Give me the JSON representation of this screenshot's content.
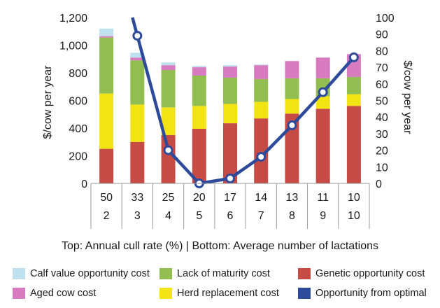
{
  "chart_data": {
    "type": "bar",
    "stacked": true,
    "xlabel": "Top: Annual cull rate (%) | Bottom: Average number of lactations",
    "ylabel_left": "$/cow per year",
    "ylabel_right": "$/cow per year",
    "ylim_left": [
      0,
      1200
    ],
    "yticks_left": [
      "0",
      "200",
      "400",
      "600",
      "800",
      "1,000",
      "1,200"
    ],
    "ylim_right": [
      0,
      100
    ],
    "yticks_right": [
      "0",
      "10",
      "20",
      "30",
      "40",
      "50",
      "60",
      "70",
      "80",
      "90",
      "100"
    ],
    "grid": false,
    "legend_position": "bottom",
    "categories": [
      {
        "top": "50",
        "bottom": "2"
      },
      {
        "top": "33",
        "bottom": "3"
      },
      {
        "top": "25",
        "bottom": "4"
      },
      {
        "top": "20",
        "bottom": "5"
      },
      {
        "top": "17",
        "bottom": "6"
      },
      {
        "top": "14",
        "bottom": "7"
      },
      {
        "top": "13",
        "bottom": "8"
      },
      {
        "top": "11",
        "bottom": "9"
      },
      {
        "top": "10",
        "bottom": "10"
      }
    ],
    "series": [
      {
        "name": "Genetic opportunity cost",
        "color": "#c64b45",
        "values": [
          250,
          300,
          350,
          395,
          435,
          470,
          505,
          540,
          560
        ]
      },
      {
        "name": "Herd replacement cost",
        "color": "#f2e414",
        "values": [
          400,
          270,
          200,
          165,
          140,
          120,
          105,
          90,
          85
        ]
      },
      {
        "name": "Lack of maturity cost",
        "color": "#92bd50",
        "values": [
          405,
          320,
          270,
          220,
          190,
          165,
          150,
          130,
          125
        ]
      },
      {
        "name": "Aged cow cost",
        "color": "#d87ac0",
        "values": [
          10,
          20,
          35,
          60,
          80,
          100,
          125,
          150,
          165
        ]
      },
      {
        "name": "Calf value opportunity cost",
        "color": "#bfe0ef",
        "values": [
          55,
          35,
          20,
          10,
          10,
          5,
          0,
          0,
          0
        ]
      }
    ],
    "line_series": {
      "name": "Opportunity from optimal",
      "color": "#2d4a9b",
      "axis": "right",
      "values": [
        null,
        89,
        20,
        0,
        3,
        16,
        35,
        55,
        76
      ],
      "clipped_at_top_from_first_category": true
    },
    "legend": [
      {
        "name": "Calf value opportunity cost",
        "color": "#bfe0ef"
      },
      {
        "name": "Lack of maturity cost",
        "color": "#92bd50"
      },
      {
        "name": "Genetic opportunity cost",
        "color": "#c64b45"
      },
      {
        "name": "Aged cow cost",
        "color": "#d87ac0"
      },
      {
        "name": "Herd replacement cost",
        "color": "#f2e414"
      },
      {
        "name": "Opportunity from optimal",
        "color": "#2d4a9b"
      }
    ]
  }
}
